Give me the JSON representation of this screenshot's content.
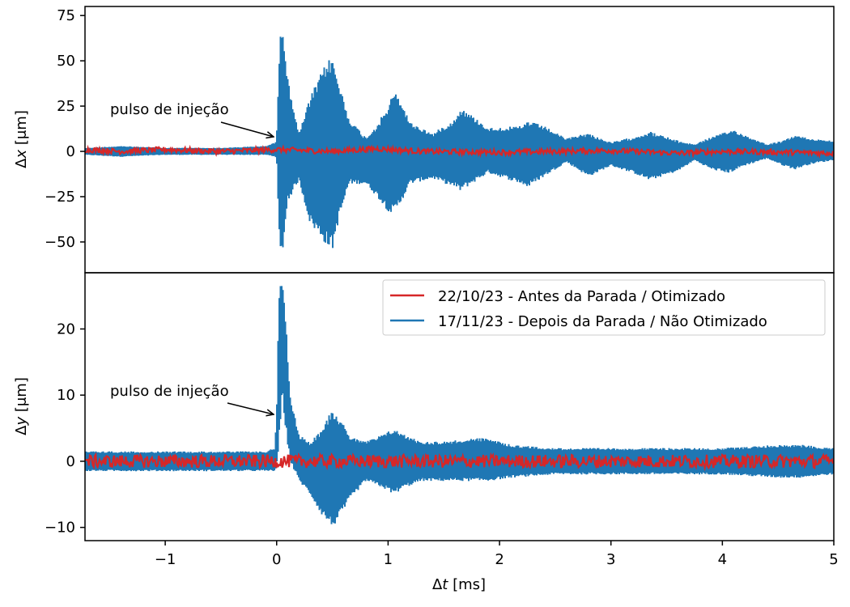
{
  "chart_data": [
    {
      "type": "line",
      "panel": "top",
      "ylabel": "Δx [μm]",
      "ylabel_prefix": "Δ",
      "ylabel_var": "x",
      "ylabel_unit": " [μm]",
      "xlim": [
        -1.72,
        5.0
      ],
      "ylim": [
        -67,
        80
      ],
      "yticks": [
        -50,
        -25,
        0,
        25,
        50,
        75
      ],
      "ytick_labels": [
        "−50",
        "−25",
        "0",
        "25",
        "50",
        "75"
      ],
      "annotation": {
        "text": "pulso de injeção",
        "arrow_to": [
          0.0,
          7
        ]
      },
      "series": [
        {
          "color": "#1f77b4",
          "dense_band": true,
          "envelope_x": [
            -1.72,
            -1.4,
            -1.0,
            -0.5,
            -0.1,
            -0.01,
            0.0,
            0.03,
            0.05,
            0.1,
            0.2,
            0.3,
            0.45,
            0.5,
            0.55,
            0.65,
            0.8,
            0.9,
            1.0,
            1.05,
            1.1,
            1.2,
            1.4,
            1.6,
            1.65,
            1.75,
            1.9,
            2.2,
            2.25,
            2.4,
            2.6,
            2.7,
            2.8,
            3.0,
            3.2,
            3.35,
            3.6,
            3.75,
            3.9,
            4.05,
            4.1,
            4.2,
            4.4,
            4.55,
            4.65,
            4.8,
            5.0
          ],
          "envelope_upper": [
            2,
            3,
            2,
            2,
            3,
            5,
            8,
            70,
            74,
            40,
            10,
            30,
            50,
            52,
            40,
            18,
            8,
            15,
            25,
            33,
            30,
            16,
            10,
            18,
            24,
            20,
            13,
            14,
            17,
            14,
            7,
            9,
            10,
            5,
            8,
            11,
            6,
            4,
            8,
            11,
            12,
            9,
            4,
            6,
            9,
            7,
            6
          ],
          "envelope_lower": [
            -2,
            -3,
            -2,
            -2,
            -2,
            -3,
            -5,
            -62,
            -58,
            -28,
            -16,
            -40,
            -52,
            -55,
            -40,
            -18,
            -18,
            -25,
            -33,
            -35,
            -30,
            -18,
            -15,
            -20,
            -22,
            -18,
            -12,
            -18,
            -20,
            -14,
            -6,
            -10,
            -14,
            -8,
            -12,
            -16,
            -11,
            -5,
            -10,
            -12,
            -11,
            -8,
            -4,
            -8,
            -10,
            -7,
            -5
          ]
        },
        {
          "color": "#d62728",
          "noise_amplitude": 1.5,
          "trend_x": [
            -1.72,
            -1.4,
            -1.0,
            -0.5,
            0.0,
            0.5,
            0.9,
            1.3,
            2.0,
            2.5,
            3.0,
            3.6,
            4.0,
            4.6,
            5.0
          ],
          "trend_y": [
            1,
            0,
            1,
            0,
            1,
            0,
            1.5,
            0,
            -0.5,
            0,
            0.5,
            -1,
            0,
            -0.5,
            -1
          ]
        }
      ]
    },
    {
      "type": "line",
      "panel": "bottom",
      "xlabel": "Δt [ms]",
      "xlabel_prefix": "Δ",
      "xlabel_var": "t",
      "xlabel_unit": " [ms]",
      "ylabel": "Δy [μm]",
      "ylabel_prefix": "Δ",
      "ylabel_var": "y",
      "ylabel_unit": " [μm]",
      "xlim": [
        -1.72,
        5.0
      ],
      "ylim": [
        -12,
        28.5
      ],
      "xticks": [
        -1,
        0,
        1,
        2,
        3,
        4,
        5
      ],
      "xtick_labels": [
        "−1",
        "0",
        "1",
        "2",
        "3",
        "4",
        "5"
      ],
      "yticks": [
        -10,
        0,
        10,
        20
      ],
      "ytick_labels": [
        "−10",
        "0",
        "10",
        "20"
      ],
      "legend": {
        "placement": "upper right",
        "entries": [
          {
            "label": "22/10/23 - Antes da Parada / Otimizado",
            "color": "#d62728"
          },
          {
            "label": "17/11/23 - Depois da Parada / Não Otimizado",
            "color": "#1f77b4"
          }
        ]
      },
      "annotation": {
        "text": "pulso de injeção",
        "arrow_to": [
          -0.03,
          7
        ]
      },
      "series": [
        {
          "color": "#1f77b4",
          "dense_band": true,
          "envelope_x": [
            -1.72,
            -1.0,
            -0.5,
            -0.1,
            -0.02,
            0.0,
            0.02,
            0.05,
            0.08,
            0.12,
            0.2,
            0.3,
            0.4,
            0.5,
            0.55,
            0.65,
            0.8,
            0.95,
            1.05,
            1.15,
            1.3,
            1.5,
            1.8,
            1.9,
            2.1,
            2.5,
            3.0,
            3.5,
            4.0,
            4.5,
            4.7,
            5.0
          ],
          "envelope_upper": [
            1.5,
            1.5,
            1.5,
            1.5,
            2,
            7,
            26,
            27,
            22,
            10,
            4,
            3,
            5,
            8,
            7,
            4,
            3,
            4,
            5,
            4,
            3,
            3,
            3.5,
            3.5,
            2.5,
            2,
            2,
            2,
            2,
            2.5,
            2.5,
            2
          ],
          "envelope_lower": [
            -1.5,
            -1.5,
            -1.5,
            -1.5,
            -1.5,
            -1,
            2,
            10,
            5,
            0,
            -3,
            -5,
            -8,
            -10,
            -9,
            -6,
            -3,
            -4,
            -5,
            -4,
            -3,
            -3,
            -3,
            -3,
            -2.5,
            -2,
            -2,
            -2,
            -2,
            -2.5,
            -2.5,
            -2
          ]
        },
        {
          "color": "#d62728",
          "noise_amplitude": 1.0,
          "trend_x": [
            -1.72,
            5.0
          ],
          "trend_y": [
            0,
            0
          ]
        }
      ]
    }
  ]
}
